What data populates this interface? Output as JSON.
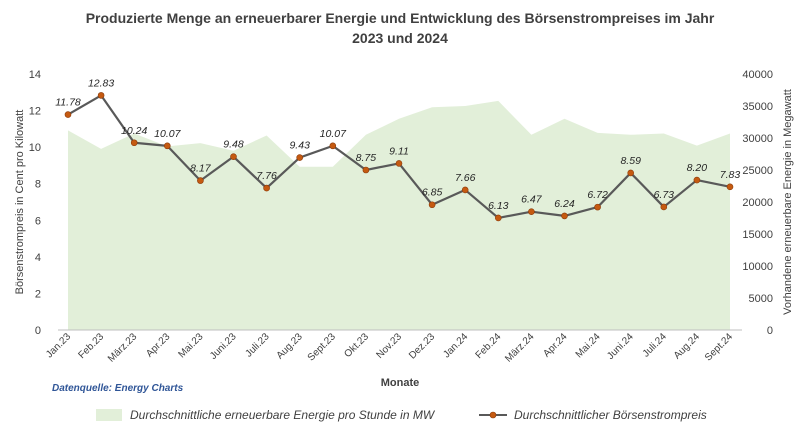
{
  "chart_data": {
    "type": "line",
    "title_line1": "Produzierte Menge an erneuerbarer Energie und Entwicklung des Börsenstrompreises im Jahr",
    "title_line2": "2023 und 2024",
    "xlabel": "Monate",
    "ylabel_left": "Börsenstrompreis in Cent pro Kilowatt",
    "ylabel_right": "Vorhandene erneuerbare Energie in Megawatt",
    "categories": [
      "Jan.23",
      "Feb.23",
      "März.23",
      "Apr.23",
      "Mai.23",
      "Juni.23",
      "Juli.23",
      "Aug.23",
      "Sept.23",
      "Okt.23",
      "Nov.23",
      "Dez.23",
      "Jan.24",
      "Feb.24",
      "März.24",
      "Apr.24",
      "Mai.24",
      "Juni.24",
      "Juli.24",
      "Aug.24",
      "Sept.24"
    ],
    "y_left_ticks": [
      "0",
      "2",
      "4",
      "6",
      "8",
      "10",
      "12",
      "14"
    ],
    "y_right_ticks": [
      "0",
      "5000",
      "10000",
      "15000",
      "20000",
      "25000",
      "30000",
      "35000",
      "40000"
    ],
    "ylim_left": [
      0,
      14
    ],
    "ylim_right": [
      0,
      40000
    ],
    "grid": false,
    "legend_position": "bottom",
    "series": [
      {
        "name": "Durchschnittliche erneuerbare Energie pro Stunde in MW",
        "type": "area",
        "axis": "right",
        "color": "#e2efd9",
        "values": [
          31200,
          28300,
          30700,
          28700,
          29200,
          28000,
          30400,
          25500,
          25500,
          30500,
          33000,
          34800,
          35000,
          35800,
          30500,
          33000,
          30800,
          30500,
          30700,
          28800,
          30700
        ]
      },
      {
        "name": "Durchschnittlicher Börsenstrompreis",
        "type": "line",
        "axis": "left",
        "color": "#595959",
        "marker_color": "#c55a11",
        "values": [
          11.78,
          12.83,
          10.24,
          10.07,
          8.17,
          9.48,
          7.76,
          9.43,
          10.07,
          8.75,
          9.11,
          6.85,
          7.66,
          6.13,
          6.47,
          6.24,
          6.72,
          8.59,
          6.73,
          8.2,
          7.83
        ],
        "value_labels": [
          "11.78",
          "12.83",
          "10.24",
          "10.07",
          "8.17",
          "9.48",
          "7.76",
          "9.43",
          "10.07",
          "8.75",
          "9.11",
          "6.85",
          "7.66",
          "6.13",
          "6.47",
          "6.24",
          "6.72",
          "8.59",
          "6.73",
          "8.20",
          "7.83"
        ]
      }
    ]
  },
  "source_note": "Datenquelle: Energy Charts"
}
